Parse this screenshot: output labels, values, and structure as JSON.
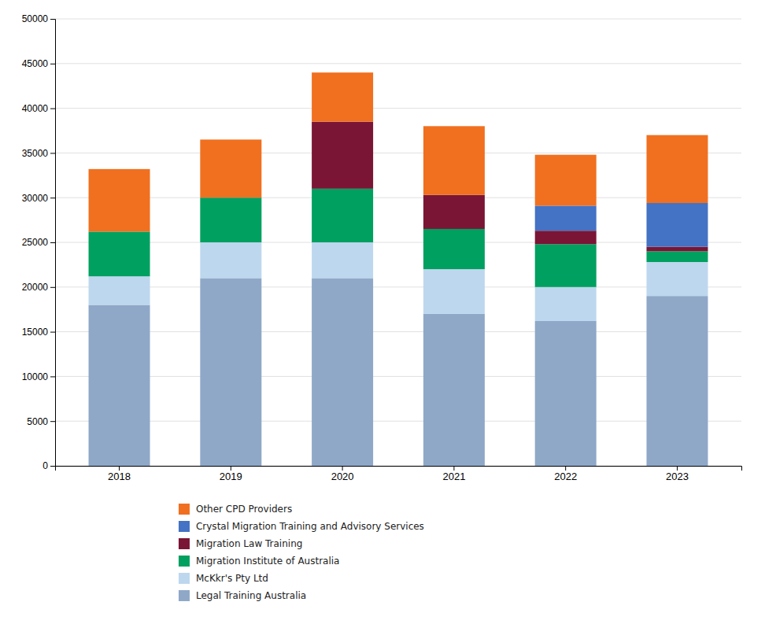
{
  "chart_data": {
    "type": "bar",
    "stacked": true,
    "categories": [
      "2018",
      "2019",
      "2020",
      "2021",
      "2022",
      "2023"
    ],
    "series": [
      {
        "name": "Legal Training Australia",
        "color": "#8fa8c8",
        "values": [
          18000,
          21000,
          21000,
          17000,
          16200,
          19000
        ]
      },
      {
        "name": "McKkr's Pty Ltd",
        "color": "#bdd7ee",
        "values": [
          3200,
          4000,
          4000,
          5000,
          3800,
          3800
        ]
      },
      {
        "name": "Migration Institute of Australia",
        "color": "#00a060",
        "values": [
          5000,
          5000,
          6000,
          4500,
          4800,
          1200
        ]
      },
      {
        "name": "Migration Law Training",
        "color": "#7b1535",
        "values": [
          0,
          0,
          7500,
          3800,
          1500,
          500
        ]
      },
      {
        "name": "Crystal Migration Training and Advisory Services",
        "color": "#4472c4",
        "values": [
          0,
          0,
          0,
          0,
          2800,
          4900
        ]
      },
      {
        "name": "Other CPD Providers",
        "color": "#f07020",
        "values": [
          7000,
          6500,
          5500,
          7700,
          5700,
          7600
        ]
      }
    ],
    "ylim": [
      0,
      50000
    ],
    "yticks": [
      0,
      5000,
      10000,
      15000,
      20000,
      25000,
      30000,
      35000,
      40000,
      45000,
      50000
    ],
    "grid": true,
    "legend": "bottom"
  }
}
